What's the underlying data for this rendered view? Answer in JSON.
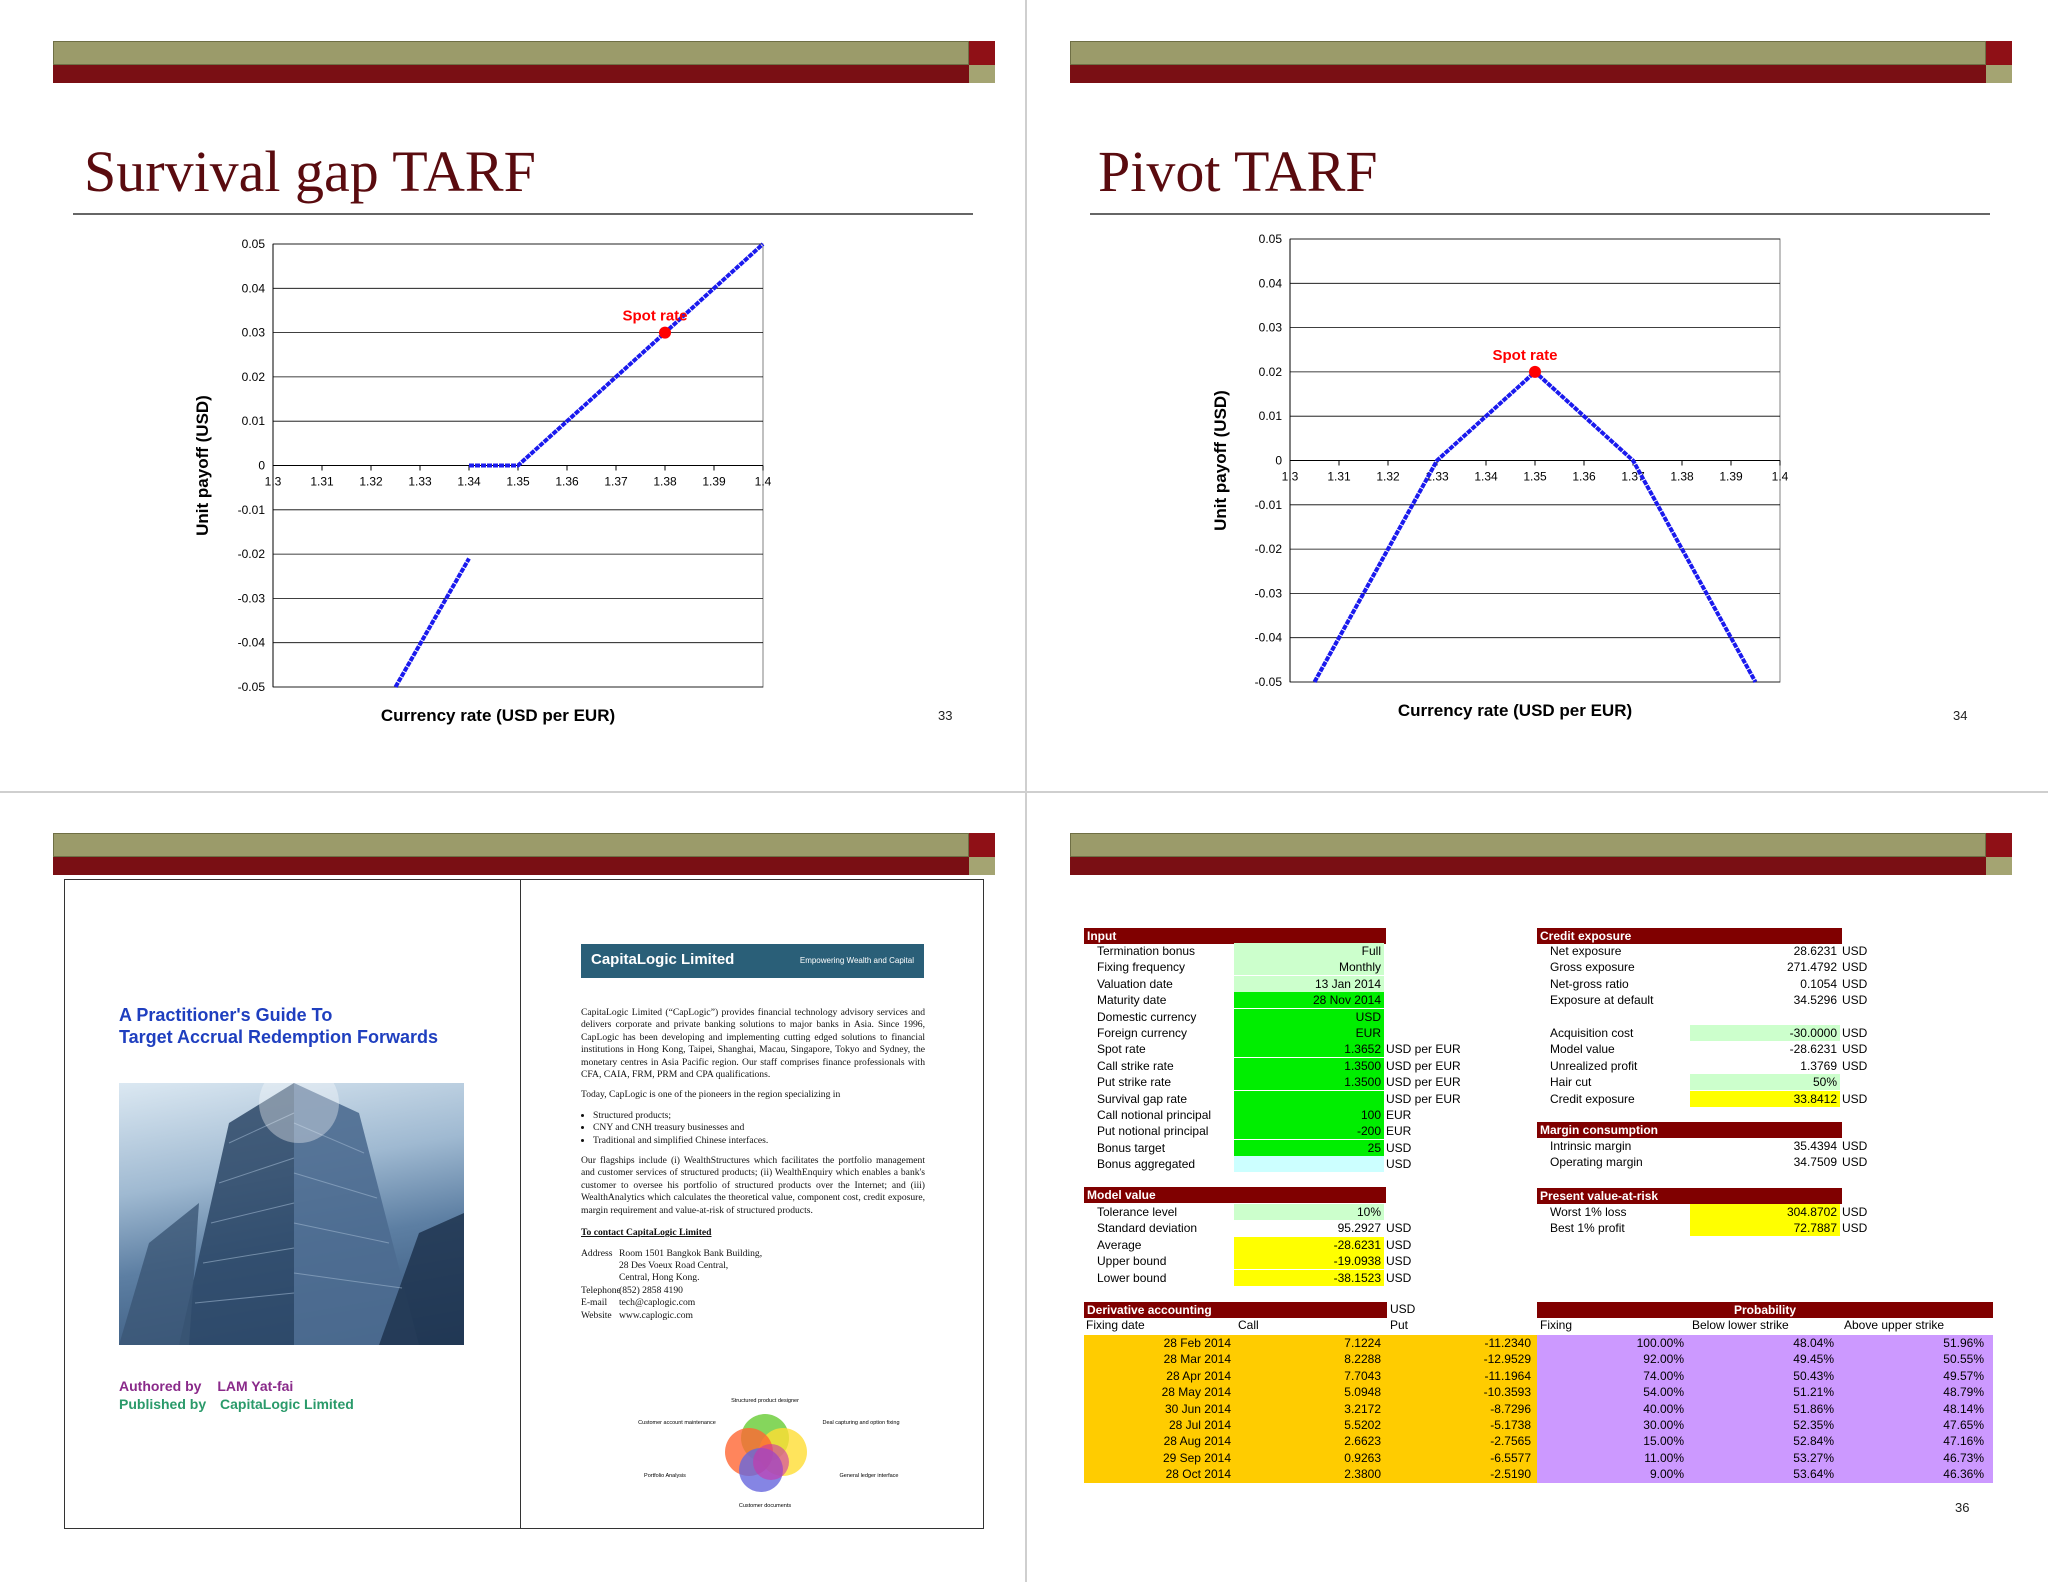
{
  "slides": {
    "s33": {
      "title": "Survival gap TARF",
      "page": "33"
    },
    "s34": {
      "title": "Pivot TARF",
      "page": "34"
    },
    "s36": {
      "page": "36"
    }
  },
  "charts": {
    "c33": {
      "ylabel": "Unit payoff (USD)",
      "xlabel": "Currency rate (USD per EUR)",
      "annotation": "Spot rate",
      "xticks": [
        "1.3",
        "1.31",
        "1.32",
        "1.33",
        "1.34",
        "1.35",
        "1.36",
        "1.37",
        "1.38",
        "1.39",
        "1.4"
      ],
      "yticks": [
        "0.05",
        "0.04",
        "0.03",
        "0.02",
        "0.01",
        "0",
        "-0.01",
        "-0.02",
        "-0.03",
        "-0.04",
        "-0.05"
      ]
    },
    "c34": {
      "ylabel": "Unit payoff (USD)",
      "xlabel": "Currency rate (USD per EUR)",
      "annotation": "Spot rate",
      "xticks": [
        "1.3",
        "1.31",
        "1.32",
        "1.33",
        "1.34",
        "1.35",
        "1.36",
        "1.37",
        "1.38",
        "1.39",
        "1.4"
      ],
      "yticks": [
        "0.05",
        "0.04",
        "0.03",
        "0.02",
        "0.01",
        "0",
        "-0.01",
        "-0.02",
        "-0.03",
        "-0.04",
        "-0.05"
      ]
    }
  },
  "chart_data": [
    {
      "type": "line",
      "title": "Survival gap TARF",
      "xlabel": "Currency rate (USD per EUR)",
      "ylabel": "Unit payoff (USD)",
      "xlim": [
        1.3,
        1.4
      ],
      "ylim": [
        -0.05,
        0.05
      ],
      "grid": true,
      "series": [
        {
          "x": [
            1.325,
            1.34
          ],
          "y": [
            -0.05,
            -0.021
          ]
        },
        {
          "x": [
            1.34,
            1.35,
            1.4
          ],
          "y": [
            0,
            0,
            0.05
          ]
        }
      ],
      "annotations": [
        {
          "text": "Spot rate",
          "x": 1.38,
          "y": 0.03,
          "color": "#ff0000"
        }
      ],
      "line_color": "#1a1aee"
    },
    {
      "type": "line",
      "title": "Pivot TARF",
      "xlabel": "Currency rate (USD per EUR)",
      "ylabel": "Unit payoff (USD)",
      "xlim": [
        1.3,
        1.4
      ],
      "ylim": [
        -0.05,
        0.05
      ],
      "grid": true,
      "series": [
        {
          "x": [
            1.305,
            1.33,
            1.35,
            1.37,
            1.395
          ],
          "y": [
            -0.05,
            0,
            0.02,
            0,
            -0.05
          ]
        }
      ],
      "annotations": [
        {
          "text": "Spot rate",
          "x": 1.35,
          "y": 0.02,
          "color": "#ff0000"
        }
      ],
      "line_color": "#1a1aee"
    }
  ],
  "book": {
    "title_line1": "A Practitioner's Guide To",
    "title_line2": "Target Accrual Redemption Forwards",
    "authored_label": "Authored by",
    "authored_value": "LAM Yat-fai",
    "published_label": "Published by",
    "published_value": "CapitaLogic Limited",
    "logo_name": "CapitaLogic Limited",
    "logo_tag": "Empowering Wealth and Capital",
    "para1": "CapitaLogic Limited (“CapLogic”) provides financial technology advisory services and delivers corporate and private banking solutions to major banks in Asia.  Since 1996, CapLogic has been developing and implementing cutting edged solutions to financial institutions in Hong Kong, Taipei, Shanghai, Macau, Singapore, Tokyo and Sydney, the monetary centres in Asia Pacific region.  Our staff comprises finance professionals with CFA, CAIA, FRM, PRM and CPA qualifications.",
    "para2": "Today, CapLogic is one of the pioneers in the region specializing in",
    "bullets": [
      "Structured products;",
      "CNY and CNH treasury businesses and",
      "Traditional and simplified Chinese interfaces."
    ],
    "para3": "Our flagships include (i) WealthStructures which facilitates the portfolio management and customer services of structured products; (ii) WealthEnquiry which enables a bank's customer to oversee his portfolio of structured products over the Internet; and (iii) WealthAnalytics which calculates the theoretical value, component cost, credit exposure, margin requirement and value-at-risk of structured products.",
    "contact_title": "To contact CapitaLogic Limited",
    "contact": [
      {
        "k": "Address",
        "v": "Room 1501 Bangkok Bank Building,"
      },
      {
        "k": "",
        "v": "28 Des Voeux Road Central,"
      },
      {
        "k": "",
        "v": "Central, Hong Kong."
      },
      {
        "k": "Telephone",
        "v": "(852) 2858 4190"
      },
      {
        "k": "E-mail",
        "v": "tech@caplogic.com"
      },
      {
        "k": "Website",
        "v": "www.caplogic.com"
      }
    ],
    "venn": {
      "top": "Structured product designer",
      "left": "Customer account maintenance",
      "right": "Deal capturing and option fixing",
      "bleft": "Portfolio Analysis",
      "bright": "General ledger interface",
      "bottom": "Customer documents"
    }
  },
  "sheet": {
    "input_header": "Input",
    "inputs": [
      {
        "l": "Termination bonus",
        "v": "Full",
        "u": "",
        "c": "lg"
      },
      {
        "l": "Fixing frequency",
        "v": "Monthly",
        "u": "",
        "c": "lg"
      },
      {
        "l": "Valuation date",
        "v": "13 Jan 2014",
        "u": "",
        "c": "lg"
      },
      {
        "l": "Maturity date",
        "v": "28 Nov 2014",
        "u": "",
        "c": "bg"
      },
      {
        "l": "Domestic currency",
        "v": "USD",
        "u": "",
        "c": "bg"
      },
      {
        "l": "Foreign currency",
        "v": "EUR",
        "u": "",
        "c": "bg"
      },
      {
        "l": "Spot rate",
        "v": "1.3652",
        "u": "USD per EUR",
        "c": "bg"
      },
      {
        "l": "Call strike rate",
        "v": "1.3500",
        "u": "USD per EUR",
        "c": "bg"
      },
      {
        "l": "Put strike rate",
        "v": "1.3500",
        "u": "USD per EUR",
        "c": "bg"
      },
      {
        "l": "Survival gap rate",
        "v": "",
        "u": "USD per EUR",
        "c": "bg"
      },
      {
        "l": "Call notional principal",
        "v": "100",
        "u": "EUR",
        "c": "bg"
      },
      {
        "l": "Put notional principal",
        "v": "-200",
        "u": "EUR",
        "c": "bg"
      },
      {
        "l": "Bonus target",
        "v": "25",
        "u": "USD",
        "c": "bg"
      },
      {
        "l": "Bonus aggregated",
        "v": "",
        "u": "USD",
        "c": "lc"
      }
    ],
    "model_header": "Model value",
    "model": [
      {
        "l": "Tolerance level",
        "v": "10%",
        "u": "",
        "c": "lg"
      },
      {
        "l": "Standard deviation",
        "v": "95.2927",
        "u": "USD",
        "c": ""
      },
      {
        "l": "Average",
        "v": "-28.6231",
        "u": "USD",
        "c": "yl"
      },
      {
        "l": "Upper bound",
        "v": "-19.0938",
        "u": "USD",
        "c": "yl"
      },
      {
        "l": "Lower bound",
        "v": "-38.1523",
        "u": "USD",
        "c": "yl"
      }
    ],
    "credit_header": "Credit exposure",
    "credit": [
      {
        "l": "Net exposure",
        "v": "28.6231",
        "u": "USD",
        "c": ""
      },
      {
        "l": "Gross exposure",
        "v": "271.4792",
        "u": "USD",
        "c": ""
      },
      {
        "l": "Net-gross ratio",
        "v": "0.1054",
        "u": "USD",
        "c": ""
      },
      {
        "l": "Exposure at default",
        "v": "34.5296",
        "u": "USD",
        "c": ""
      }
    ],
    "credit2": [
      {
        "l": "Acquisition cost",
        "v": "-30.0000",
        "u": "USD",
        "c": "lg"
      },
      {
        "l": "Model value",
        "v": "-28.6231",
        "u": "USD",
        "c": ""
      },
      {
        "l": "Unrealized profit",
        "v": "1.3769",
        "u": "USD",
        "c": ""
      },
      {
        "l": "Hair cut",
        "v": "50%",
        "u": "",
        "c": "lg"
      },
      {
        "l": "Credit exposure",
        "v": "33.8412",
        "u": "USD",
        "c": "yl"
      }
    ],
    "margin_header": "Margin consumption",
    "margin": [
      {
        "l": "Intrinsic margin",
        "v": "35.4394",
        "u": "USD",
        "c": ""
      },
      {
        "l": "Operating margin",
        "v": "34.7509",
        "u": "USD",
        "c": ""
      }
    ],
    "pvar_header": "Present value-at-risk",
    "pvar": [
      {
        "l": "Worst 1% loss",
        "v": "304.8702",
        "u": "USD",
        "c": "yl"
      },
      {
        "l": "Best 1% profit",
        "v": "72.7887",
        "u": "USD",
        "c": "yl"
      }
    ],
    "deriv_header": "Derivative accounting",
    "deriv_unit": "USD",
    "deriv_cols": [
      "Fixing date",
      "Call",
      "Put"
    ],
    "prob_header": "Probability",
    "prob_cols": [
      "Fixing",
      "Below lower strike",
      "Above upper strike"
    ],
    "rows": [
      {
        "d": "28 Feb 2014",
        "c": "7.1224",
        "p": "-11.2340",
        "f": "100.00%",
        "b": "48.04%",
        "a": "51.96%"
      },
      {
        "d": "28 Mar 2014",
        "c": "8.2288",
        "p": "-12.9529",
        "f": "92.00%",
        "b": "49.45%",
        "a": "50.55%"
      },
      {
        "d": "28 Apr 2014",
        "c": "7.7043",
        "p": "-11.1964",
        "f": "74.00%",
        "b": "50.43%",
        "a": "49.57%"
      },
      {
        "d": "28 May 2014",
        "c": "5.0948",
        "p": "-10.3593",
        "f": "54.00%",
        "b": "51.21%",
        "a": "48.79%"
      },
      {
        "d": "30 Jun 2014",
        "c": "3.2172",
        "p": "-8.7296",
        "f": "40.00%",
        "b": "51.86%",
        "a": "48.14%"
      },
      {
        "d": "28 Jul 2014",
        "c": "5.5202",
        "p": "-5.1738",
        "f": "30.00%",
        "b": "52.35%",
        "a": "47.65%"
      },
      {
        "d": "28 Aug 2014",
        "c": "2.6623",
        "p": "-2.7565",
        "f": "15.00%",
        "b": "52.84%",
        "a": "47.16%"
      },
      {
        "d": "29 Sep 2014",
        "c": "0.9263",
        "p": "-6.5577",
        "f": "11.00%",
        "b": "53.27%",
        "a": "46.73%"
      },
      {
        "d": "28 Oct 2014",
        "c": "2.3800",
        "p": "-2.5190",
        "f": "9.00%",
        "b": "53.64%",
        "a": "46.36%"
      }
    ]
  }
}
